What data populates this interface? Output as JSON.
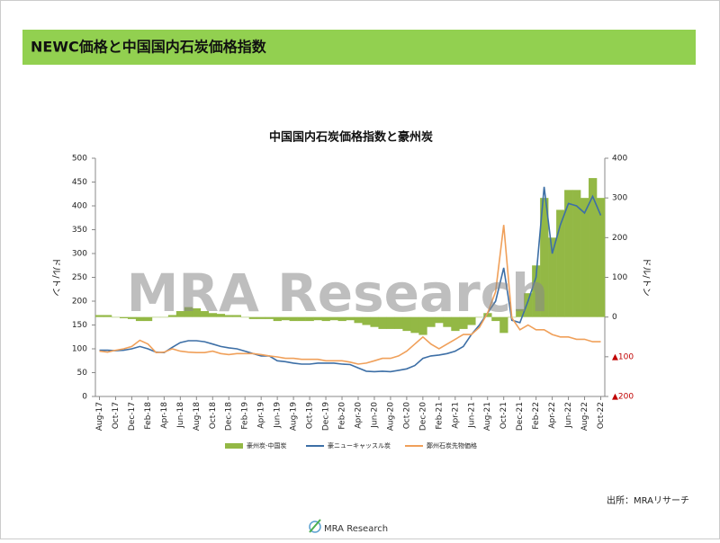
{
  "header": {
    "title": "NEWC価格と中国国内石炭価格指数"
  },
  "watermark": "MRA Research",
  "chart_data": {
    "type": "combo",
    "title": "中国国内石炭価格指数と豪州炭",
    "ylabel": "ドル/トン",
    "y2label": "ドル/トン",
    "categories": [
      "Aug-17",
      null,
      "Oct-17",
      null,
      "Dec-17",
      null,
      "Feb-18",
      null,
      "Apr-18",
      null,
      "Jun-18",
      null,
      "Aug-18",
      null,
      "Oct-18",
      null,
      "Dec-18",
      null,
      "Feb-19",
      null,
      "Apr-19",
      null,
      "Jun-19",
      null,
      "Aug-19",
      null,
      "Oct-19",
      null,
      "Dec-19",
      null,
      "Feb-20",
      null,
      "Apr-20",
      null,
      "Jun-20",
      null,
      "Aug-20",
      null,
      "Oct-20",
      null,
      "Dec-20",
      null,
      "Feb-21",
      null,
      "Apr-21",
      null,
      "Jun-21",
      null,
      "Aug-21",
      null,
      "Oct-21",
      null,
      "Dec-21",
      null,
      "Feb-22",
      null,
      "Apr-22",
      null,
      "Jun-22",
      null,
      "Aug-22",
      null,
      "Oct-22"
    ],
    "ylim": [
      0,
      500
    ],
    "yticks": [
      0,
      50,
      100,
      150,
      200,
      250,
      300,
      350,
      400,
      450,
      500
    ],
    "y2lim": [
      -200,
      400
    ],
    "y2ticks": [
      {
        "value": -200,
        "label": "▲200"
      },
      {
        "value": -100,
        "label": "▲100"
      },
      0,
      100,
      200,
      300,
      400
    ],
    "y2_negative_label_color": "#c00000",
    "series": [
      {
        "name": "豪州炭-中国炭",
        "type": "bar",
        "axis": "y2",
        "color": "#93b845",
        "values": [
          5,
          5,
          0,
          -3,
          -5,
          -10,
          -10,
          0,
          0,
          5,
          15,
          25,
          22,
          15,
          10,
          8,
          5,
          5,
          0,
          -5,
          -5,
          -5,
          -10,
          -8,
          -10,
          -10,
          -10,
          -8,
          -10,
          -8,
          -10,
          -8,
          -15,
          -20,
          -25,
          -30,
          -30,
          -30,
          -35,
          -40,
          -45,
          -25,
          -15,
          -25,
          -35,
          -30,
          -20,
          0,
          10,
          -10,
          -40,
          0,
          20,
          60,
          130,
          300,
          200,
          270,
          320,
          320,
          300,
          350,
          300
        ]
      },
      {
        "name": "豪ニューキャッスル炭",
        "type": "line",
        "color": "#3d6fa6",
        "values": [
          97,
          97,
          96,
          97,
          100,
          105,
          100,
          93,
          92,
          103,
          113,
          117,
          117,
          115,
          110,
          105,
          102,
          100,
          95,
          90,
          85,
          85,
          75,
          73,
          70,
          68,
          68,
          70,
          70,
          70,
          68,
          67,
          60,
          53,
          52,
          53,
          52,
          55,
          58,
          65,
          80,
          85,
          87,
          90,
          95,
          105,
          130,
          150,
          175,
          200,
          270,
          160,
          155,
          200,
          250,
          440,
          300,
          360,
          405,
          400,
          385,
          420,
          380
        ]
      },
      {
        "name": "鄭州石炭先物価格",
        "type": "line",
        "color": "#f0a05a",
        "values": [
          95,
          93,
          97,
          100,
          105,
          118,
          110,
          92,
          93,
          100,
          95,
          93,
          92,
          92,
          95,
          90,
          88,
          90,
          90,
          90,
          88,
          85,
          83,
          80,
          80,
          78,
          78,
          78,
          75,
          75,
          75,
          72,
          68,
          70,
          75,
          80,
          80,
          85,
          95,
          110,
          125,
          110,
          100,
          110,
          120,
          130,
          130,
          145,
          175,
          220,
          360,
          165,
          140,
          150,
          140,
          140,
          130,
          125,
          125,
          120,
          120,
          115,
          115
        ]
      }
    ]
  },
  "footer": {
    "source": "出所：MRAリサーチ",
    "logo": "MRA Research"
  }
}
